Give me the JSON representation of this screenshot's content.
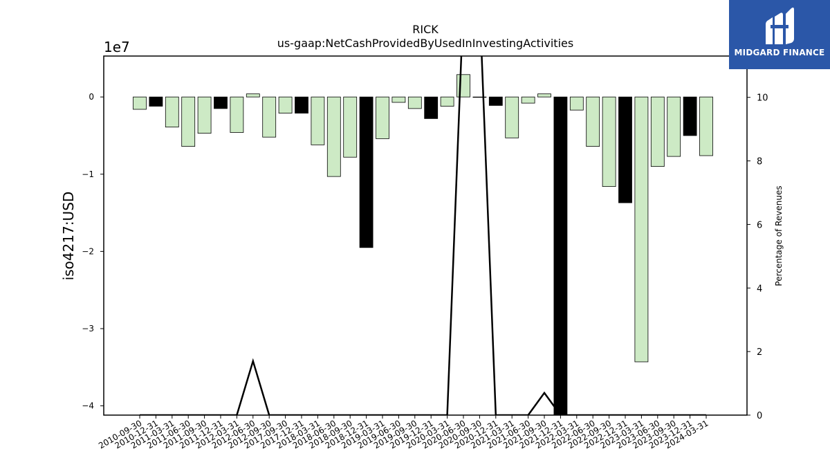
{
  "chart_data": {
    "type": "bar",
    "title": "RICK",
    "subtitle": "us-gaap:NetCashProvidedByUsedInInvestingActivities",
    "ylabel": "iso4217:USD",
    "y_offset_label": "1e7",
    "y2label": "Percentage of Revenues",
    "ylim": [
      -4.12,
      0.53
    ],
    "y2lim": [
      0,
      11.3
    ],
    "yticks": [
      0,
      -1,
      -2,
      -3,
      -4
    ],
    "yticklabels": [
      "0",
      "−1",
      "−2",
      "−3",
      "−4"
    ],
    "y2ticks": [
      0,
      2,
      4,
      6,
      8,
      10
    ],
    "grid": false,
    "categories": [
      "2010-09-30",
      "2010-12-31",
      "2011-03-31",
      "2011-06-30",
      "2011-09-30",
      "2011-12-31",
      "2012-03-31",
      "2012-06-30",
      "2012-09-30",
      "2017-09-30",
      "2017-12-31",
      "2018-03-31",
      "2018-06-30",
      "2018-09-30",
      "2018-12-31",
      "2019-03-31",
      "2019-06-30",
      "2019-09-30",
      "2019-12-31",
      "2020-03-31",
      "2020-06-30",
      "2020-09-30",
      "2020-12-31",
      "2021-03-31",
      "2021-06-30",
      "2021-09-30",
      "2021-12-31",
      "2022-03-31",
      "2022-06-30",
      "2022-09-30",
      "2022-12-31",
      "2023-03-31",
      "2023-06-30",
      "2023-09-30",
      "2023-12-31",
      "2024-03-31"
    ],
    "values": [
      -0.16,
      -0.12,
      -0.39,
      -0.64,
      -0.47,
      -0.15,
      -0.46,
      0.04,
      -0.52,
      -0.21,
      -0.21,
      -0.62,
      -1.03,
      -0.78,
      -1.95,
      -0.54,
      -0.07,
      -0.15,
      -0.28,
      -0.12,
      0.29,
      0.0,
      -0.11,
      -0.53,
      -0.08,
      0.04,
      -4.15,
      -0.17,
      -0.64,
      -1.16,
      -1.37,
      -3.43,
      -0.9,
      -0.77,
      -0.5,
      -0.76
    ],
    "bar_colors": [
      "#cdeac5",
      "#000000",
      "#cdeac5",
      "#cdeac5",
      "#cdeac5",
      "#000000",
      "#cdeac5",
      "#cdeac5",
      "#cdeac5",
      "#cdeac5",
      "#000000",
      "#cdeac5",
      "#cdeac5",
      "#cdeac5",
      "#000000",
      "#cdeac5",
      "#cdeac5",
      "#cdeac5",
      "#000000",
      "#cdeac5",
      "#cdeac5",
      "#cdeac5",
      "#000000",
      "#cdeac5",
      "#cdeac5",
      "#cdeac5",
      "#000000",
      "#cdeac5",
      "#cdeac5",
      "#cdeac5",
      "#000000",
      "#cdeac5",
      "#cdeac5",
      "#cdeac5",
      "#000000",
      "#cdeac5"
    ],
    "line_series": {
      "values": [
        0,
        0,
        0,
        0,
        0,
        0,
        0,
        1.7,
        0,
        0,
        0,
        0,
        0,
        0,
        0,
        0,
        0,
        0,
        0,
        0,
        13,
        13,
        0,
        0,
        0,
        0.7,
        0,
        0,
        0,
        0,
        0,
        0,
        0,
        0,
        0,
        0
      ],
      "color": "#000000"
    }
  },
  "logo": {
    "text": "MIDGARD FINANCE"
  }
}
